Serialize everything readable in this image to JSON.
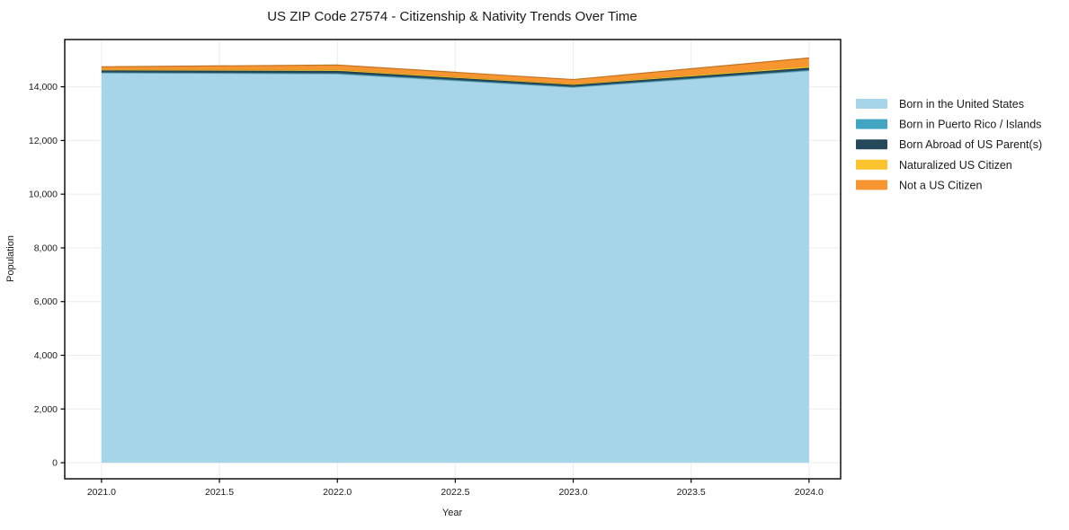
{
  "figure": {
    "title": "US ZIP Code 27574 - Citizenship & Nativity Trends Over Time"
  },
  "chart_data": {
    "type": "area",
    "stacked": true,
    "title": "US ZIP Code 27574 - Citizenship & Nativity Trends Over Time",
    "xlabel": "Year",
    "ylabel": "Population",
    "x": [
      2021,
      2022,
      2023,
      2024
    ],
    "series": [
      {
        "name": "Born in the United States",
        "color": "#a6d4e8",
        "values": [
          14520,
          14480,
          13980,
          14600
        ]
      },
      {
        "name": "Born in Puerto Rico / Islands",
        "color": "#42a6c2",
        "values": [
          20,
          30,
          25,
          30
        ]
      },
      {
        "name": "Born Abroad of US Parent(s)",
        "color": "#25485a",
        "values": [
          70,
          85,
          65,
          80
        ]
      },
      {
        "name": "Naturalized US Citizen",
        "color": "#fcc32d",
        "values": [
          35,
          50,
          35,
          65
        ]
      },
      {
        "name": "Not a US Citizen",
        "color": "#f79530",
        "values": [
          100,
          165,
          165,
          300
        ]
      }
    ],
    "totals": [
      14745,
      14810,
      14270,
      15075
    ],
    "xlim": [
      2020.844,
      2024.134
    ],
    "ylim": [
      -600,
      15760
    ],
    "xticks": {
      "values": [
        2021,
        2021.5,
        2022,
        2022.5,
        2023,
        2023.5,
        2024
      ],
      "labels": [
        "2021.0",
        "2021.5",
        "2022.0",
        "2022.5",
        "2023.0",
        "2023.5",
        "2024.0"
      ]
    },
    "yticks": {
      "values": [
        0,
        2000,
        4000,
        6000,
        8000,
        10000,
        12000,
        14000
      ],
      "labels": [
        "0",
        "2,000",
        "4,000",
        "6,000",
        "8,000",
        "10,000",
        "12,000",
        "14,000"
      ]
    },
    "grid": true,
    "grid_color": "#ececf0",
    "frame_color": "#000000",
    "legend_position": "right-outside"
  }
}
